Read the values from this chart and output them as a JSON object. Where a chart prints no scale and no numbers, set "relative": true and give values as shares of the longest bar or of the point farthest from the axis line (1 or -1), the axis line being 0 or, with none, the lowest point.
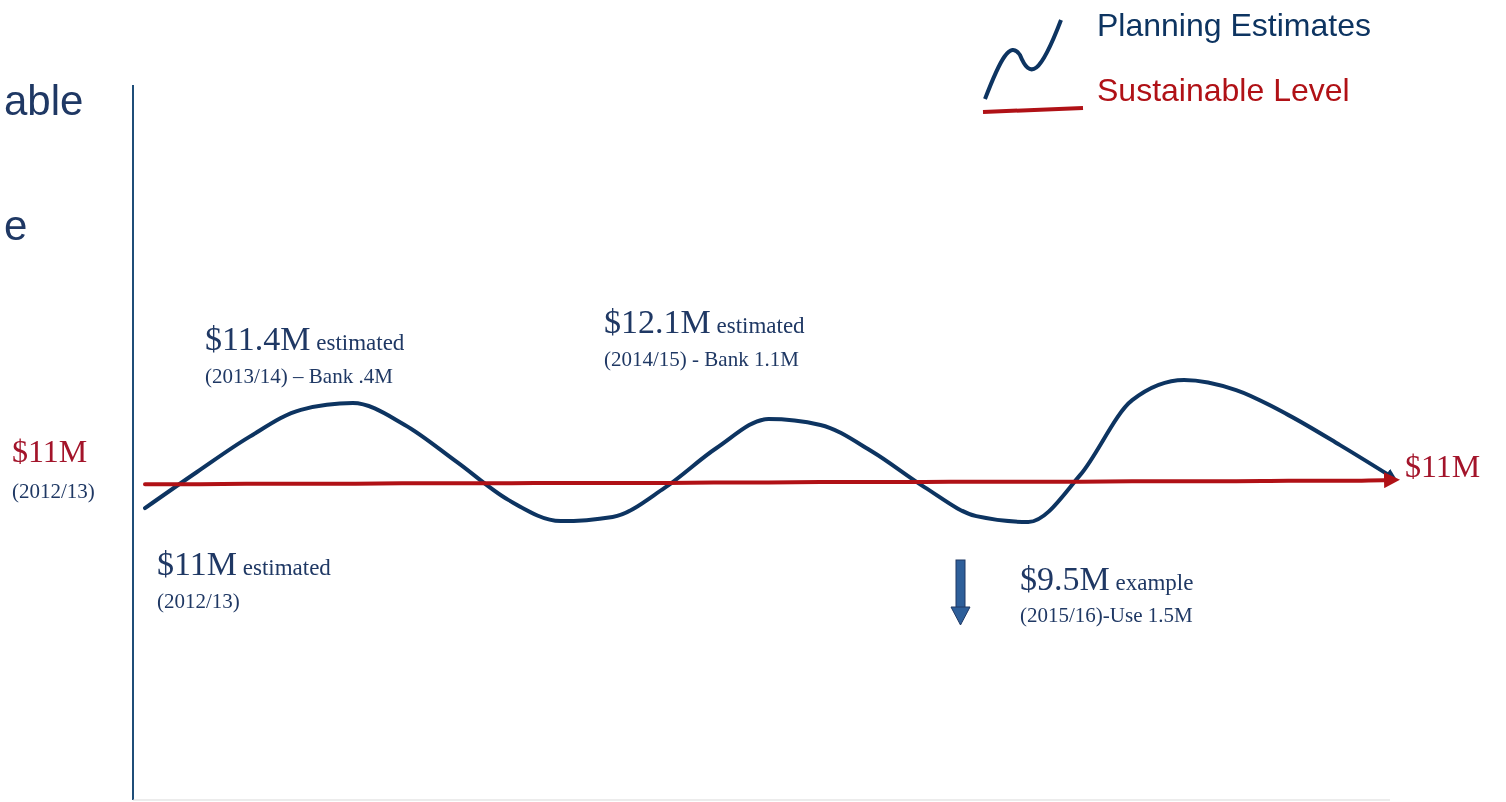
{
  "chart_data": {
    "type": "line",
    "relative": true,
    "legend": "top right",
    "categories": [
      null,
      null,
      null,
      null,
      null,
      null,
      null,
      null,
      null,
      null,
      null,
      null,
      null,
      null,
      null,
      null,
      null,
      null,
      null,
      null,
      null,
      null,
      null,
      null,
      null
    ],
    "series": [
      {
        "name": "Planning Estimates",
        "color": "#0d3461",
        "values": [
          0.695,
          0.781,
          0.864,
          0.929,
          0.945,
          0.893,
          0.805,
          0.714,
          0.664,
          0.674,
          0.743,
          0.838,
          0.907,
          0.893,
          0.829,
          0.745,
          0.676,
          0.662,
          0.774,
          0.952,
          1,
          0.976,
          0.917,
          0.845,
          0.769
        ]
      },
      {
        "name": "Sustainable Level",
        "color": "#b01116",
        "values": [
          0.752,
          0.752,
          0.753,
          0.753,
          0.753,
          0.754,
          0.754,
          0.754,
          0.755,
          0.755,
          0.755,
          0.756,
          0.756,
          0.757,
          0.757,
          0.757,
          0.758,
          0.758,
          0.758,
          0.759,
          0.759,
          0.759,
          0.76,
          0.76,
          0.762
        ]
      }
    ],
    "annotations": [
      "able",
      "e",
      "$11M",
      "(2012/13)",
      "$11.4M estimated",
      "(2013/14) – Bank .4M",
      "$12.1M estimated",
      "(2014/15) - Bank 1.1M",
      "$11M estimated",
      "(2012/13)",
      "$9.5M example",
      "(2015/16)-Use 1.5M",
      "$11M"
    ]
  }
}
